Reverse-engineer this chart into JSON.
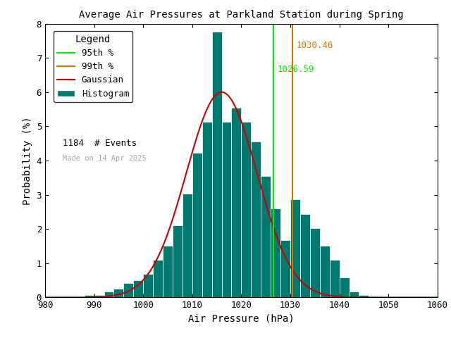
{
  "title": "Average Air Pressures at Parkland Station during Spring",
  "xlabel": "Air Pressure (hPa)",
  "ylabel": "Probability (%)",
  "xlim": [
    980,
    1060
  ],
  "ylim": [
    0,
    8
  ],
  "xticks": [
    980,
    990,
    1000,
    1010,
    1020,
    1030,
    1040,
    1050,
    1060
  ],
  "yticks": [
    0,
    1,
    2,
    3,
    4,
    5,
    6,
    7,
    8
  ],
  "percentile_95": 1026.59,
  "percentile_99": 1030.46,
  "n_events": 1184,
  "gauss_mean": 1016.0,
  "gauss_std": 7.2,
  "gauss_peak": 6.0,
  "hist_color": "#007A6E",
  "hist_edgecolor": "white",
  "line_95_color": "#00EE00",
  "line_99_color": "#CC7700",
  "gauss_color": "#CC0000",
  "bg_color": "white",
  "watermark": "Made on 14 Apr 2025",
  "watermark_color": "#aaaaaa",
  "bin_edges": [
    988,
    990,
    992,
    994,
    996,
    998,
    1000,
    1002,
    1004,
    1006,
    1008,
    1010,
    1012,
    1014,
    1016,
    1018,
    1020,
    1022,
    1024,
    1026,
    1028,
    1030,
    1032,
    1034,
    1036,
    1038,
    1040,
    1042,
    1044
  ],
  "bin_heights": [
    0.08,
    0.08,
    0.17,
    0.25,
    0.42,
    0.51,
    0.68,
    1.1,
    1.52,
    2.11,
    3.03,
    4.22,
    5.13,
    7.77,
    5.13,
    5.55,
    5.13,
    4.55,
    3.54,
    2.61,
    1.68,
    2.86,
    2.44,
    2.02,
    1.52,
    1.1,
    0.59,
    0.17,
    0.08
  ]
}
